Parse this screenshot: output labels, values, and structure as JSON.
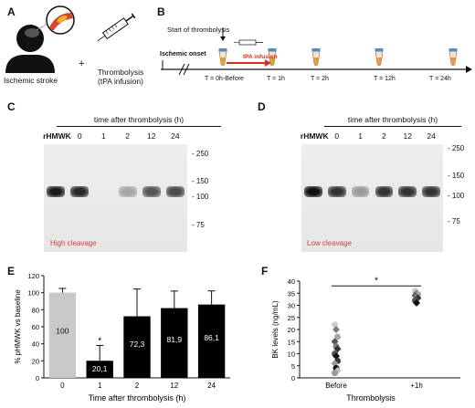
{
  "panels": {
    "a": "A",
    "b": "B",
    "c": "C",
    "d": "D",
    "e": "E",
    "f": "F"
  },
  "panel_a": {
    "stroke_label": "Ischemic stroke",
    "plus": "+",
    "therapy_label_1": "Thrombolysis",
    "therapy_label_2": "(tPA infusion)"
  },
  "panel_b": {
    "start_label": "Start of thrombolysis",
    "onset_label": "Ischemic onset",
    "infusion_label": "tPA infusion",
    "timepoints": [
      "T = 0h-Before",
      "T = 1h",
      "T = 2h",
      "T = 12h",
      "T = 24h"
    ],
    "infusion_color": "#d62c1e"
  },
  "blot_c": {
    "title": "time after thrombolysis (h)",
    "lanes": [
      "rHMWK",
      "0",
      "1",
      "2",
      "12",
      "24"
    ],
    "mw_markers": [
      "- 250",
      "- 150",
      "- 100",
      "- 75"
    ],
    "caption": "High cleavage",
    "band_intensity": [
      0.9,
      0.85,
      0.0,
      0.3,
      0.65,
      0.7
    ]
  },
  "blot_d": {
    "title": "time after thrombolysis (h)",
    "lanes": [
      "rHMWK",
      "0",
      "1",
      "2",
      "12",
      "24"
    ],
    "mw_markers": [
      "- 250",
      "- 150",
      "- 100",
      "- 75"
    ],
    "caption": "Low cleavage",
    "band_intensity": [
      0.95,
      0.8,
      0.35,
      0.8,
      0.8,
      0.8
    ]
  },
  "chart_data": [
    {
      "type": "bar",
      "panel": "E",
      "categories": [
        "0",
        "1",
        "2",
        "12",
        "24"
      ],
      "values": [
        100,
        20.1,
        72.3,
        81.9,
        86.1
      ],
      "value_labels": [
        "100",
        "20,1",
        "72,3",
        "81,9",
        "86,1"
      ],
      "errors": [
        5,
        18,
        32,
        20,
        16
      ],
      "significance": [
        "",
        "*",
        "",
        "",
        ""
      ],
      "bar_colors": [
        "#c8c8c8",
        "#000000",
        "#000000",
        "#000000",
        "#000000"
      ],
      "xlabel": "Time after thrombolysis (h)",
      "ylabel": "% pHMWK vs baseline",
      "ylim": [
        0,
        120
      ],
      "yticks": [
        "0",
        "20",
        "40",
        "60",
        "80",
        "100",
        "120"
      ]
    },
    {
      "type": "scatter",
      "panel": "F",
      "categories": [
        "Before",
        "+1h"
      ],
      "xlabel": "Thrombolysis",
      "ylabel": "BK levels (ng/mL)",
      "ylim": [
        0,
        40
      ],
      "yticks": [
        "0",
        "5",
        "10",
        "15",
        "20",
        "25",
        "30",
        "35",
        "40"
      ],
      "significance": "*",
      "series": [
        {
          "x": "Before",
          "values": [
            22,
            20,
            17,
            15,
            13,
            12,
            10,
            9,
            7,
            6,
            4,
            3,
            2
          ]
        },
        {
          "x": "+1h",
          "values": [
            36,
            35,
            34.5,
            34,
            33.5,
            33,
            32,
            31
          ]
        }
      ]
    }
  ]
}
